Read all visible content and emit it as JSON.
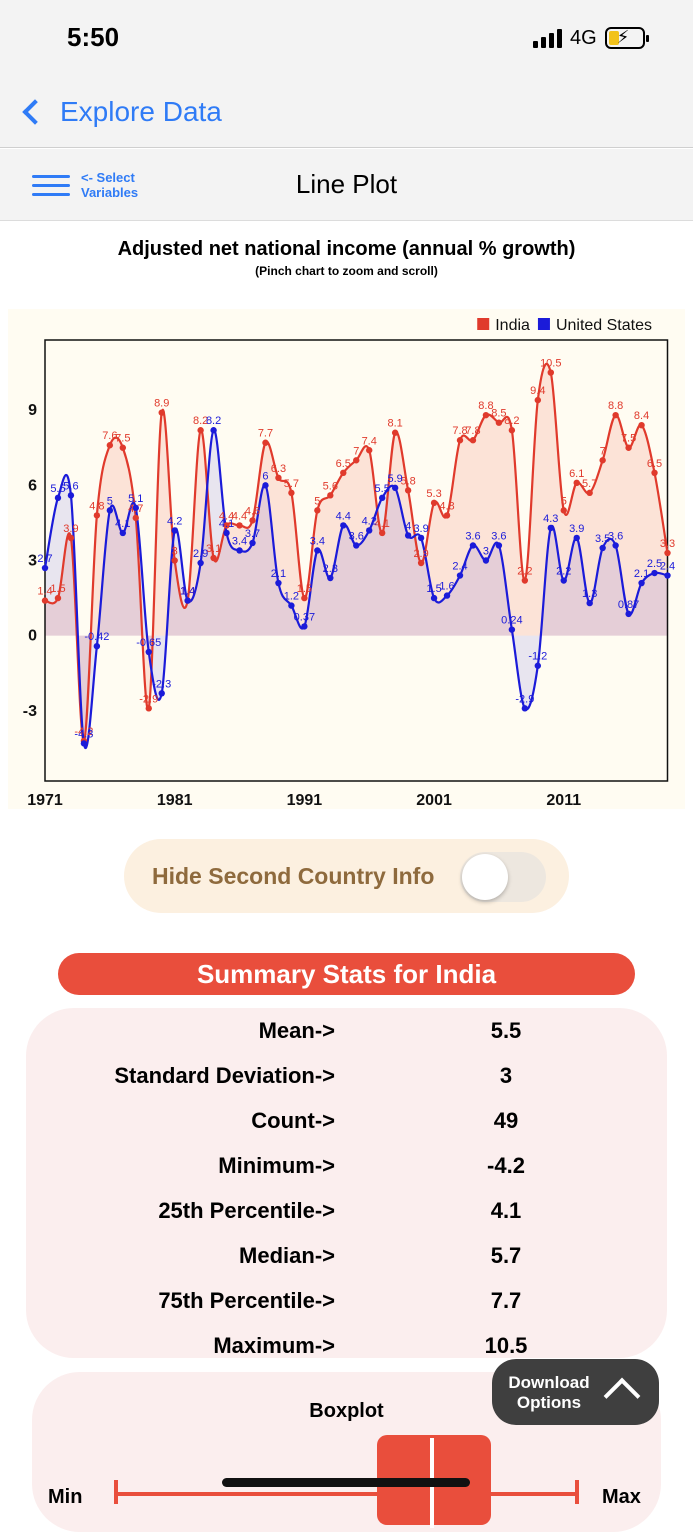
{
  "status_bar": {
    "time": "5:50",
    "network": "4G"
  },
  "nav": {
    "back_label": "Explore Data"
  },
  "header": {
    "select_line1": "<- Select",
    "select_line2": "Variables",
    "title": "Line Plot"
  },
  "chart": {
    "title": "Adjusted net national income (annual % growth)",
    "subtitle": "(Pinch chart to zoom and scroll)"
  },
  "chart_data": {
    "type": "line",
    "title": "Adjusted net national income (annual % growth)",
    "x": [
      1971,
      1972,
      1973,
      1974,
      1975,
      1976,
      1977,
      1978,
      1979,
      1980,
      1981,
      1982,
      1983,
      1984,
      1985,
      1986,
      1987,
      1988,
      1989,
      1990,
      1991,
      1992,
      1993,
      1994,
      1995,
      1996,
      1997,
      1998,
      1999,
      2000,
      2001,
      2002,
      2003,
      2004,
      2005,
      2006,
      2007,
      2008,
      2009,
      2010,
      2011,
      2012,
      2013,
      2014,
      2015,
      2016,
      2017,
      2018,
      2019
    ],
    "series": [
      {
        "name": "India",
        "color": "#e03a2c",
        "values": [
          1.4,
          1.5,
          3.9,
          -4.2,
          4.8,
          7.6,
          7.5,
          4.7,
          -2.9,
          8.9,
          3.0,
          1.4,
          8.2,
          3.1,
          4.4,
          4.4,
          4.6,
          7.7,
          6.3,
          5.7,
          1.5,
          5.0,
          5.6,
          6.5,
          7.0,
          7.4,
          4.1,
          8.1,
          5.8,
          2.9,
          5.3,
          4.8,
          7.8,
          7.8,
          8.8,
          8.5,
          8.2,
          2.2,
          9.4,
          10.5,
          5.0,
          6.1,
          5.7,
          7.0,
          8.8,
          7.5,
          8.4,
          6.5,
          3.3
        ]
      },
      {
        "name": "United States",
        "color": "#1b1bd9",
        "values": [
          2.7,
          5.5,
          5.6,
          -4.3,
          -0.42,
          5.0,
          4.1,
          5.1,
          -0.65,
          -2.3,
          4.2,
          1.4,
          2.9,
          8.2,
          4.1,
          3.4,
          3.7,
          6.0,
          2.1,
          1.2,
          0.37,
          3.4,
          2.3,
          4.4,
          3.6,
          4.2,
          5.5,
          5.9,
          4.0,
          3.9,
          1.5,
          1.6,
          2.4,
          3.6,
          3.0,
          3.6,
          0.24,
          -2.9,
          -1.2,
          4.3,
          2.2,
          3.9,
          1.3,
          3.5,
          3.6,
          0.87,
          2.1,
          2.5,
          2.4
        ]
      }
    ],
    "xticks": [
      "1971",
      "1981",
      "1991",
      "2001",
      "2011"
    ],
    "yticks": [
      "9",
      "6",
      "3",
      "0",
      "-3"
    ],
    "ylim": [
      -5.8,
      11.8
    ],
    "xlabel": "",
    "ylabel": "",
    "legend": "top-right",
    "point_labels": {
      "India": [
        "1.4",
        "1.5",
        "3.9",
        "-4.2",
        "4.8",
        "7.6",
        "7.5",
        "4.7",
        "-2.9",
        "8.9",
        "3",
        "1.4",
        "8.2",
        "3.1",
        "4.4",
        "4.4",
        "4.6",
        "7.7",
        "6.3",
        "5.7",
        "1.5",
        "5",
        "5.6",
        "6.5",
        "7",
        "7.4",
        "4.1",
        "8.1",
        "5.8",
        "2.9",
        "5.3",
        "4.8",
        "7.8",
        "7.8",
        "8.8",
        "8.5",
        "8.2",
        "2.2",
        "9.4",
        "10.5",
        "5",
        "6.1",
        "5.7",
        "7",
        "8.8",
        "7.5",
        "8.4",
        "6.5",
        "3.3"
      ],
      "United States": [
        "2.7",
        "5.5",
        "5.6",
        "-4.3",
        "-0.42",
        "5",
        "4.1",
        "5.1",
        "-0.65",
        "-2.3",
        "4.2",
        "1.4",
        "2.9",
        "8.2",
        "4.1",
        "3.4",
        "3.7",
        "6",
        "2.1",
        "1.2",
        "0.37",
        "3.4",
        "2.3",
        "4.4",
        "3.6",
        "4.2",
        "5.5",
        "5.9",
        "4",
        "3.9",
        "1.5",
        "1.6",
        "2.4",
        "3.6",
        "3",
        "3.6",
        "0.24",
        "-2.9",
        "-1.2",
        "4.3",
        "2.2",
        "3.9",
        "1.3",
        "3.5",
        "3.6",
        "0.87",
        "2.1",
        "2.5",
        "2.4"
      ]
    }
  },
  "toggle": {
    "label": "Hide Second Country Info",
    "on": false
  },
  "stats": {
    "header": "Summary Stats for India",
    "rows": [
      {
        "label": "Mean->",
        "value": "5.5"
      },
      {
        "label": "Standard Deviation->",
        "value": "3"
      },
      {
        "label": "Count->",
        "value": "49"
      },
      {
        "label": "Minimum->",
        "value": "-4.2"
      },
      {
        "label": "25th Percentile->",
        "value": "4.1"
      },
      {
        "label": "Median->",
        "value": "5.7"
      },
      {
        "label": "75th Percentile->",
        "value": "7.7"
      },
      {
        "label": "Maximum->",
        "value": "10.5"
      }
    ]
  },
  "boxplot": {
    "title": "Boxplot",
    "min_label": "Min",
    "max_label": "Max"
  },
  "download": {
    "label": "Download Options"
  },
  "colors": {
    "accent": "#2f7bf6",
    "brand_red": "#e94e3c",
    "india": "#e03a2c",
    "us": "#1b1bd9"
  }
}
